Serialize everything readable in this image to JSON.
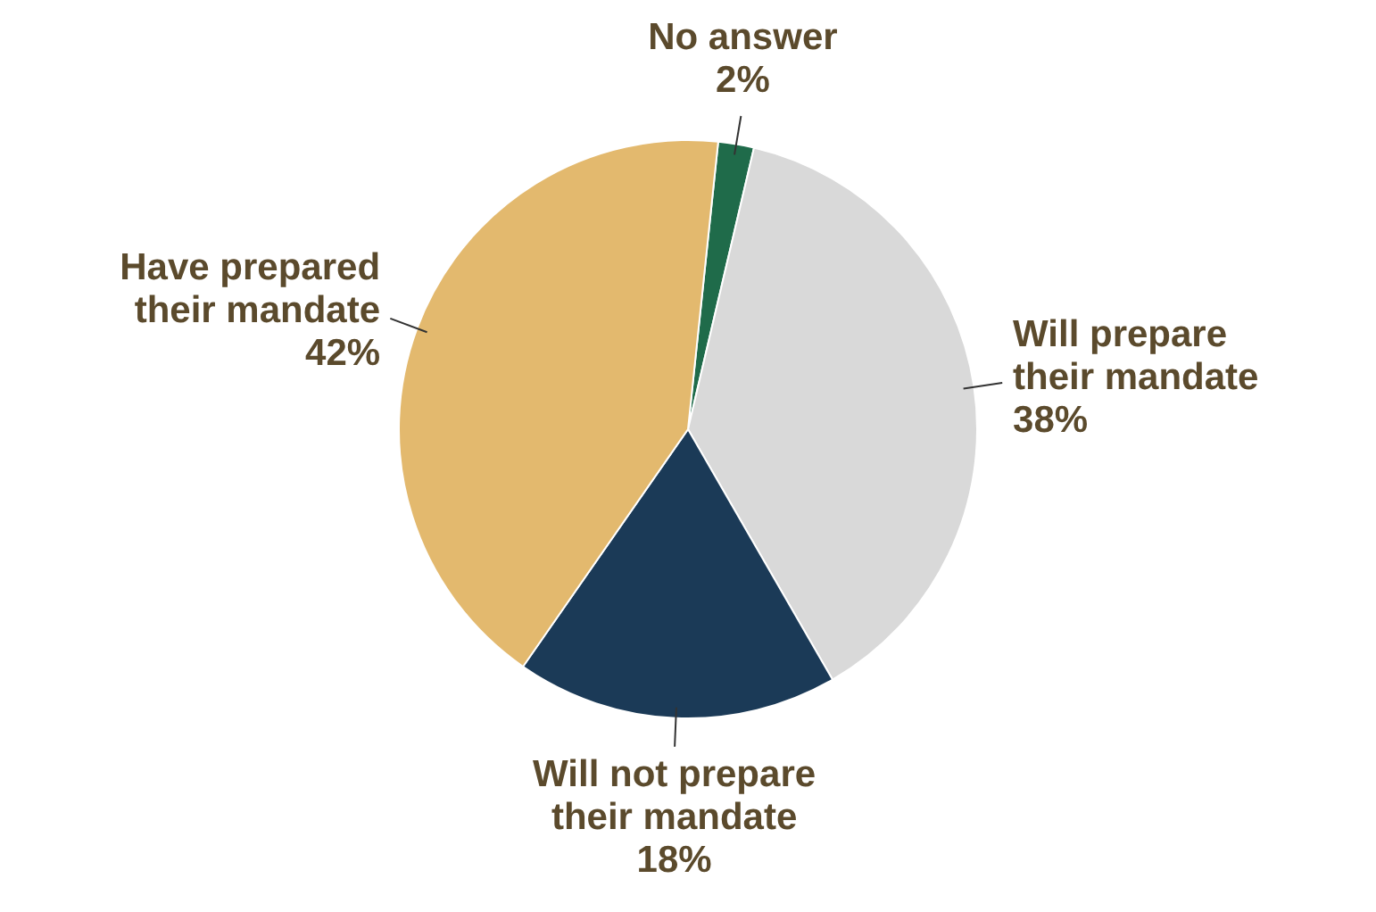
{
  "chart_data": {
    "type": "pie",
    "categories": [
      "No answer",
      "Will prepare their mandate",
      "Will not prepare their mandate",
      "Have prepared their mandate"
    ],
    "values": [
      2,
      38,
      18,
      42
    ],
    "colors": [
      "#1f6b4a",
      "#d9d9d9",
      "#1b3a57",
      "#e3b96e"
    ],
    "value_labels": [
      "2%",
      "38%",
      "18%",
      "42%"
    ],
    "legend": false
  }
}
